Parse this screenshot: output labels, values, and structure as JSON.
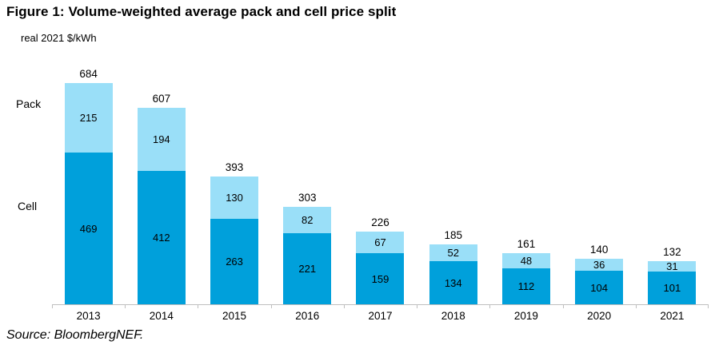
{
  "title": "Figure 1: Volume-weighted average pack and cell price split",
  "subtitle": "real 2021 $/kWh",
  "side_labels": {
    "pack": "Pack",
    "cell": "Cell"
  },
  "source_note": "Source: BloombergNEF.",
  "colors": {
    "cell_segment": "#00A0DB",
    "pack_segment": "#9ADFF8",
    "axis": "#BFBFBF",
    "text": "#000000"
  },
  "chart_data": {
    "type": "bar",
    "stacked": true,
    "title": "Figure 1: Volume-weighted average pack and cell price split",
    "ylabel": "real 2021 $/kWh",
    "xlabel": "",
    "ylim": [
      0,
      700
    ],
    "grid": false,
    "legend_position": "left-inline-labels",
    "categories": [
      "2013",
      "2014",
      "2015",
      "2016",
      "2017",
      "2018",
      "2019",
      "2020",
      "2021"
    ],
    "series": [
      {
        "name": "Cell",
        "color": "#00A0DB",
        "values": [
          469,
          412,
          263,
          221,
          159,
          134,
          112,
          104,
          101
        ]
      },
      {
        "name": "Pack",
        "color": "#9ADFF8",
        "values": [
          215,
          194,
          130,
          82,
          67,
          52,
          48,
          36,
          31
        ]
      }
    ],
    "totals": [
      684,
      607,
      393,
      303,
      226,
      185,
      161,
      140,
      132
    ]
  }
}
